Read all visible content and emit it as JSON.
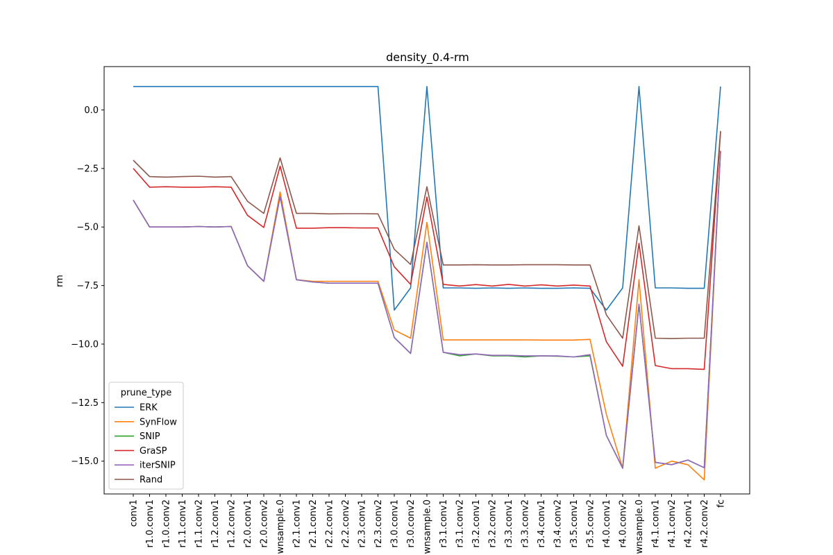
{
  "chart_data": {
    "type": "line",
    "title": "density_0.4-rm",
    "xlabel": "",
    "ylabel": "rm",
    "ylim": [
      -16.4,
      1.85
    ],
    "yticks": [
      0.0,
      -2.5,
      -5.0,
      -7.5,
      -10.0,
      -12.5,
      -15.0
    ],
    "ytick_labels": [
      "0.0",
      "−2.5",
      "−5.0",
      "−7.5",
      "−10.0",
      "−12.5",
      "−15.0"
    ],
    "grid": false,
    "legend_title": "prune_type",
    "legend_position": "lower-left",
    "categories": [
      "conv1",
      "r1.0.conv1",
      "r1.0.conv2",
      "r1.1.conv1",
      "r1.1.conv2",
      "r1.2.conv1",
      "r1.2.conv2",
      "r2.0.conv1",
      "r2.0.conv2",
      "wnsample.0",
      "r2.1.conv1",
      "r2.1.conv2",
      "r2.2.conv1",
      "r2.2.conv2",
      "r2.3.conv1",
      "r2.3.conv2",
      "r3.0.conv1",
      "r3.0.conv2",
      "wnsample.0",
      "r3.1.conv1",
      "r3.1.conv2",
      "r3.2.conv1",
      "r3.2.conv2",
      "r3.3.conv1",
      "r3.3.conv2",
      "r3.4.conv1",
      "r3.4.conv2",
      "r3.5.conv1",
      "r3.5.conv2",
      "r4.0.conv1",
      "r4.0.conv2",
      "wnsample.0",
      "r4.1.conv1",
      "r4.1.conv2",
      "r4.2.conv1",
      "r4.2.conv2",
      "fc"
    ],
    "series": [
      {
        "name": "ERK",
        "color": "#1f77b4",
        "values": [
          1.0,
          1.0,
          1.0,
          1.0,
          1.0,
          1.0,
          1.0,
          1.0,
          1.0,
          1.0,
          1.0,
          1.0,
          1.0,
          1.0,
          1.0,
          1.0,
          -8.55,
          -7.6,
          1.0,
          -7.6,
          -7.6,
          -7.62,
          -7.6,
          -7.62,
          -7.6,
          -7.62,
          -7.62,
          -7.6,
          -7.62,
          -8.55,
          -7.6,
          1.0,
          -7.6,
          -7.6,
          -7.62,
          -7.62,
          1.0
        ]
      },
      {
        "name": "SynFlow",
        "color": "#ff7f0e",
        "values": [
          -3.85,
          -5.0,
          -5.0,
          -5.0,
          -4.98,
          -5.0,
          -4.98,
          -6.65,
          -7.32,
          -3.5,
          -7.25,
          -7.32,
          -7.32,
          -7.32,
          -7.32,
          -7.32,
          -9.4,
          -9.75,
          -4.8,
          -9.82,
          -9.82,
          -9.82,
          -9.82,
          -9.82,
          -9.82,
          -9.83,
          -9.83,
          -9.83,
          -9.8,
          -13.0,
          -15.3,
          -7.25,
          -15.3,
          -15.0,
          -15.15,
          -15.8,
          -1.75
        ]
      },
      {
        "name": "SNIP",
        "color": "#2ca02c",
        "values": [
          -3.85,
          -5.0,
          -5.0,
          -5.0,
          -4.98,
          -5.0,
          -4.98,
          -6.65,
          -7.32,
          -3.7,
          -7.25,
          -7.35,
          -7.4,
          -7.4,
          -7.4,
          -7.4,
          -9.72,
          -10.4,
          -5.65,
          -10.35,
          -10.5,
          -10.42,
          -10.5,
          -10.5,
          -10.55,
          -10.5,
          -10.52,
          -10.55,
          -10.5,
          -13.9,
          -15.3,
          -8.3,
          -15.05,
          -15.15,
          -14.95,
          -15.28,
          -1.75
        ]
      },
      {
        "name": "GraSP",
        "color": "#d62728",
        "values": [
          -2.5,
          -3.3,
          -3.28,
          -3.3,
          -3.3,
          -3.28,
          -3.3,
          -4.5,
          -5.02,
          -2.4,
          -5.05,
          -5.05,
          -5.03,
          -5.03,
          -5.04,
          -5.04,
          -6.7,
          -7.45,
          -3.72,
          -7.45,
          -7.52,
          -7.46,
          -7.52,
          -7.45,
          -7.52,
          -7.47,
          -7.52,
          -7.48,
          -7.52,
          -9.9,
          -10.95,
          -5.7,
          -10.92,
          -11.05,
          -11.05,
          -11.08,
          -0.95
        ]
      },
      {
        "name": "iterSNIP",
        "color": "#9467bd",
        "values": [
          -3.85,
          -5.0,
          -5.0,
          -5.0,
          -4.98,
          -5.0,
          -4.98,
          -6.65,
          -7.32,
          -3.7,
          -7.25,
          -7.35,
          -7.4,
          -7.4,
          -7.4,
          -7.4,
          -9.72,
          -10.4,
          -5.65,
          -10.35,
          -10.45,
          -10.42,
          -10.48,
          -10.48,
          -10.5,
          -10.5,
          -10.5,
          -10.55,
          -10.45,
          -13.9,
          -15.3,
          -8.3,
          -15.05,
          -15.15,
          -14.95,
          -15.28,
          -1.75
        ]
      },
      {
        "name": "Rand",
        "color": "#8c564b",
        "values": [
          -2.15,
          -2.85,
          -2.87,
          -2.85,
          -2.83,
          -2.87,
          -2.85,
          -3.9,
          -4.42,
          -2.05,
          -4.42,
          -4.42,
          -4.44,
          -4.43,
          -4.43,
          -4.44,
          -5.95,
          -6.6,
          -3.28,
          -6.62,
          -6.62,
          -6.61,
          -6.62,
          -6.62,
          -6.61,
          -6.61,
          -6.61,
          -6.62,
          -6.62,
          -8.75,
          -9.75,
          -4.95,
          -9.75,
          -9.76,
          -9.75,
          -9.75,
          -0.9
        ]
      }
    ]
  }
}
